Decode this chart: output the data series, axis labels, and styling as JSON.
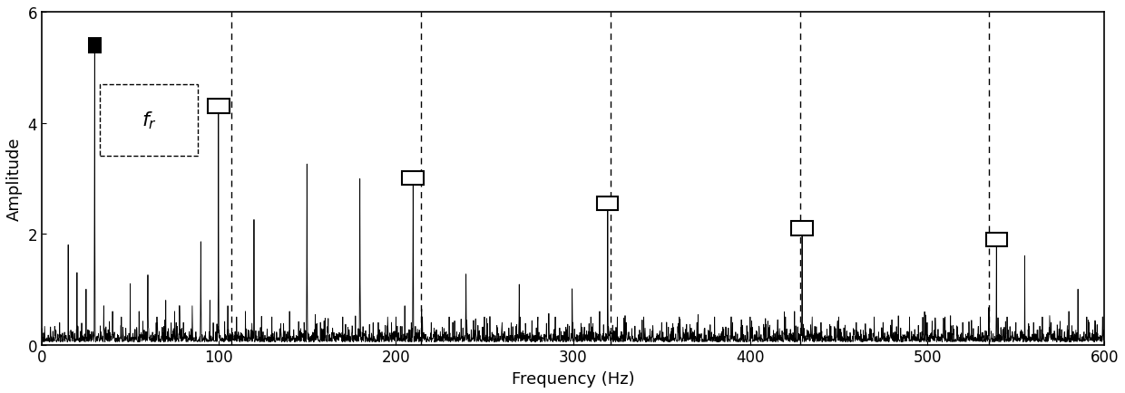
{
  "title": "",
  "xlabel": "Frequency (Hz)",
  "ylabel": "Amplitude",
  "xlim": [
    0,
    600
  ],
  "ylim": [
    0,
    6
  ],
  "yticks": [
    0,
    2,
    4,
    6
  ],
  "xticks": [
    0,
    100,
    200,
    300,
    400,
    500,
    600
  ],
  "fr": 29.95,
  "fr_harmonics": [
    29.95,
    99.8,
    209.6,
    319.5,
    429.3,
    539.1
  ],
  "fr_harmonic_amplitudes": [
    5.4,
    4.3,
    3.0,
    2.55,
    2.1,
    1.9
  ],
  "dashed_lines_x": [
    107,
    214,
    321,
    428,
    535
  ],
  "background_color": "#ffffff",
  "line_color": "#000000",
  "label_fr": "$f_r$"
}
